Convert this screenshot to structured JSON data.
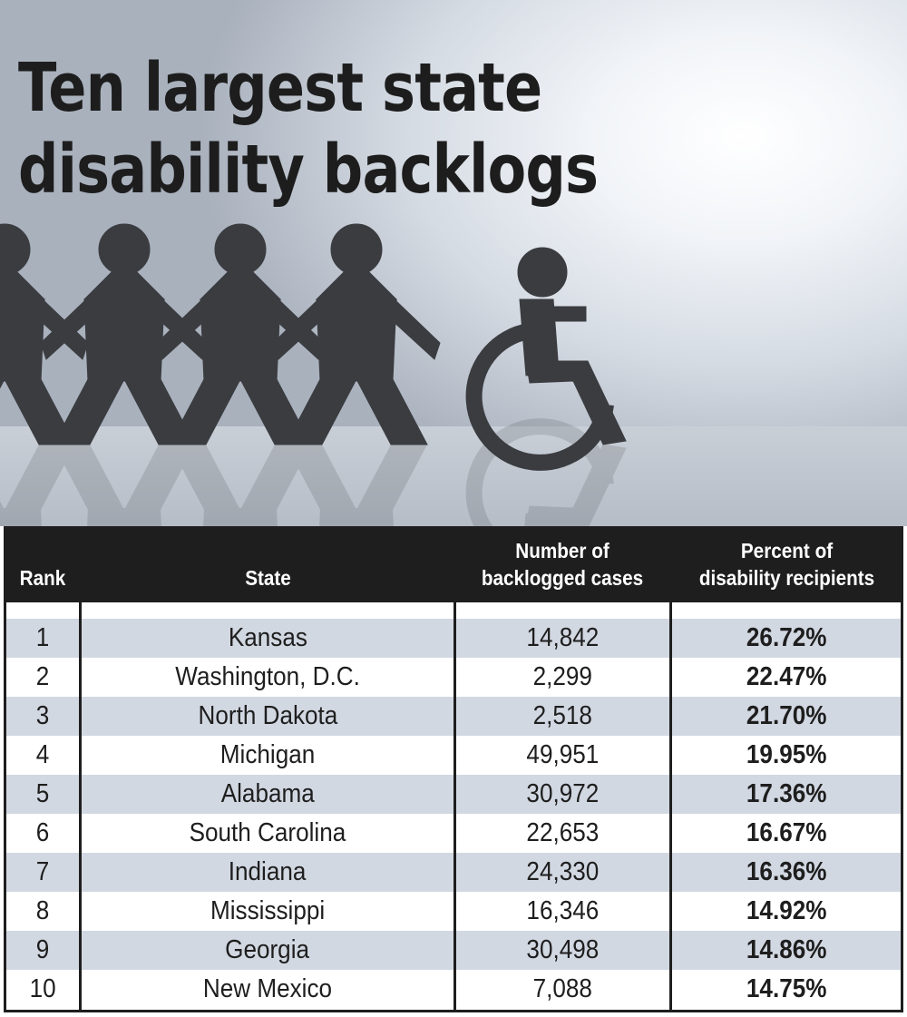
{
  "title_lines": [
    "Ten largest state",
    "disability backlogs"
  ],
  "hero_icons": {
    "figures": "paper-people-holding-hands-icon",
    "wheelchair": "wheelchair-icon"
  },
  "colors": {
    "header_bg": "#1e1e1e",
    "row_shade": "#d2d8e2",
    "text": "#1e1e1e"
  },
  "chart_data": {
    "type": "table",
    "title": "Ten largest state disability backlogs",
    "columns": [
      "Rank",
      "State",
      "Number of backlogged cases",
      "Percent of disability recipients"
    ],
    "header_lines": [
      [
        "Rank"
      ],
      [
        "State"
      ],
      [
        "Number of",
        "backlogged cases"
      ],
      [
        "Percent of",
        "disability recipients"
      ]
    ],
    "rows": [
      [
        "1",
        "Kansas",
        "14,842",
        "26.72%"
      ],
      [
        "2",
        "Washington, D.C.",
        "2,299",
        "22.47%"
      ],
      [
        "3",
        "North Dakota",
        "2,518",
        "21.70%"
      ],
      [
        "4",
        "Michigan",
        "49,951",
        "19.95%"
      ],
      [
        "5",
        "Alabama",
        "30,972",
        "17.36%"
      ],
      [
        "6",
        "South Carolina",
        "22,653",
        "16.67%"
      ],
      [
        "7",
        "Indiana",
        "24,330",
        "16.36%"
      ],
      [
        "8",
        "Mississippi",
        "16,346",
        "14.92%"
      ],
      [
        "9",
        "Georgia",
        "30,498",
        "14.86%"
      ],
      [
        "10",
        "New Mexico",
        "7,088",
        "14.75%"
      ]
    ]
  }
}
